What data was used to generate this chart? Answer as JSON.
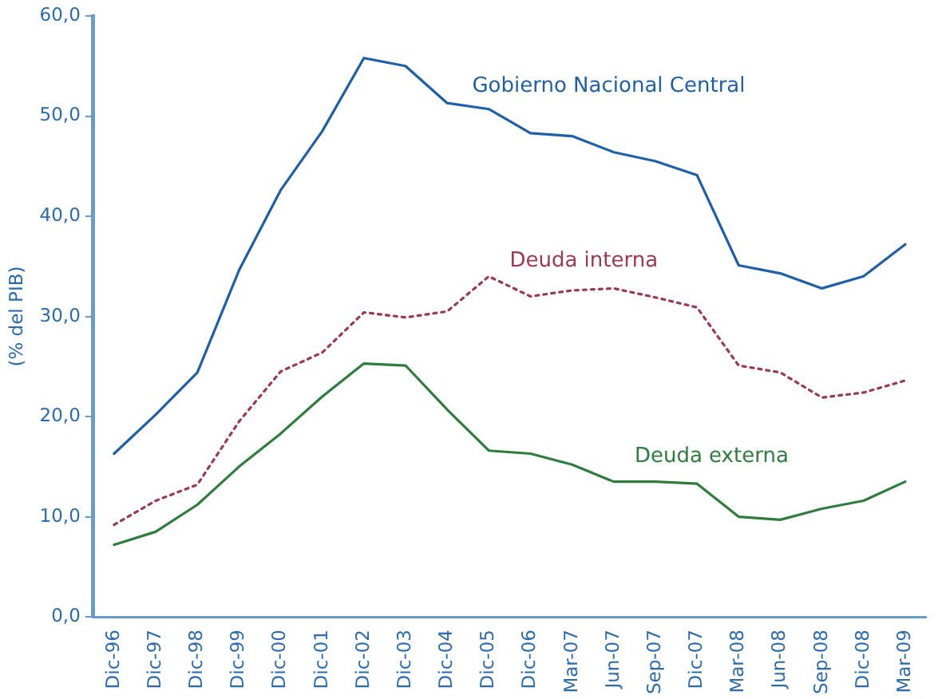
{
  "chart_data": {
    "type": "line",
    "ylabel": "(% del PIB)",
    "categories": [
      "Dic-96",
      "Dic-97",
      "Dic-98",
      "Dic-99",
      "Dic-00",
      "Dic-01",
      "Dic-02",
      "Dic-03",
      "Dic-04",
      "Dic-05",
      "Dic-06",
      "Mar-07",
      "Jun-07",
      "Sep-07",
      "Dic-07",
      "Mar-08",
      "Jun-08",
      "Sep-08",
      "Dic-08",
      "Mar-09"
    ],
    "series": [
      {
        "name": "Gobierno Nacional Central",
        "color": "#1f5fa8",
        "line_style": "solid",
        "values": [
          16.3,
          20.2,
          24.4,
          34.6,
          42.6,
          48.5,
          55.8,
          55.0,
          51.3,
          50.7,
          48.3,
          48.0,
          46.4,
          45.5,
          44.1,
          35.1,
          34.3,
          32.8,
          34.0,
          37.2
        ]
      },
      {
        "name": "Deuda interna",
        "color": "#9b3a4e",
        "line_style": "dotted",
        "values": [
          9.2,
          11.6,
          13.2,
          19.5,
          24.5,
          26.4,
          30.4,
          29.9,
          30.5,
          34.0,
          32.0,
          32.6,
          32.8,
          31.9,
          30.9,
          25.1,
          24.4,
          21.9,
          22.4,
          23.6
        ]
      },
      {
        "name": "Deuda externa",
        "color": "#2e7d3e",
        "line_style": "solid",
        "values": [
          7.2,
          8.5,
          11.2,
          15.0,
          18.3,
          22.0,
          25.3,
          25.1,
          20.7,
          16.6,
          16.3,
          15.2,
          13.5,
          13.5,
          13.3,
          10.0,
          9.7,
          10.8,
          11.6,
          13.5
        ]
      }
    ],
    "ylim": [
      0,
      60
    ],
    "yticks": [
      {
        "value": 0,
        "label": "0,0"
      },
      {
        "value": 10,
        "label": "10,0"
      },
      {
        "value": 20,
        "label": "20,0"
      },
      {
        "value": 30,
        "label": "30,0"
      },
      {
        "value": 40,
        "label": "40,0"
      },
      {
        "value": 50,
        "label": "50,0"
      },
      {
        "value": 60,
        "label": "60,0"
      }
    ],
    "grid": false,
    "legend": false,
    "marker": "none"
  }
}
